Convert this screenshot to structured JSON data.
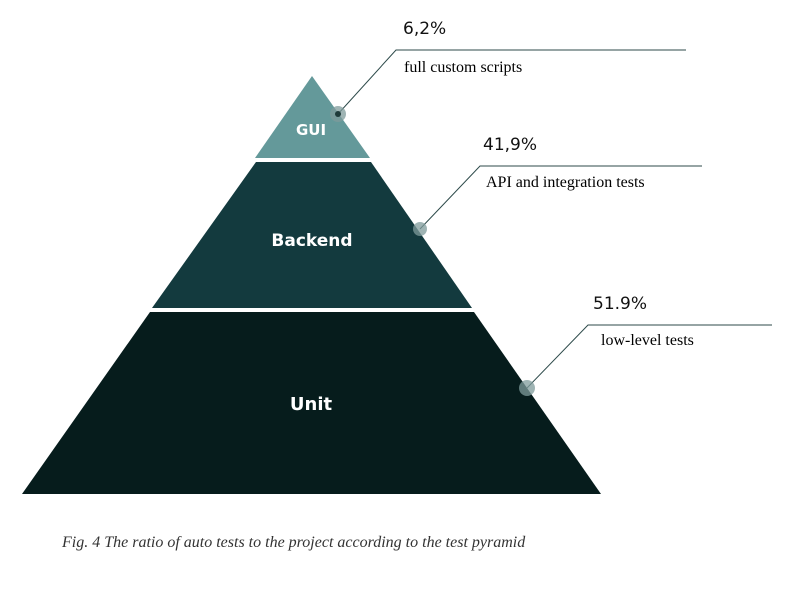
{
  "pyramid": {
    "tiers": [
      {
        "name": "GUI",
        "percent": "6,2%",
        "description": "full custom scripts",
        "color": "#64999a"
      },
      {
        "name": "Backend",
        "percent": "41,9%",
        "description": "API and integration tests",
        "color": "#133a3e"
      },
      {
        "name": "Unit",
        "percent": "51.9%",
        "description": "low-level tests",
        "color": "#061c1c"
      }
    ]
  },
  "caption": "Fig. 4 The ratio of auto tests to the project according to the test pyramid"
}
